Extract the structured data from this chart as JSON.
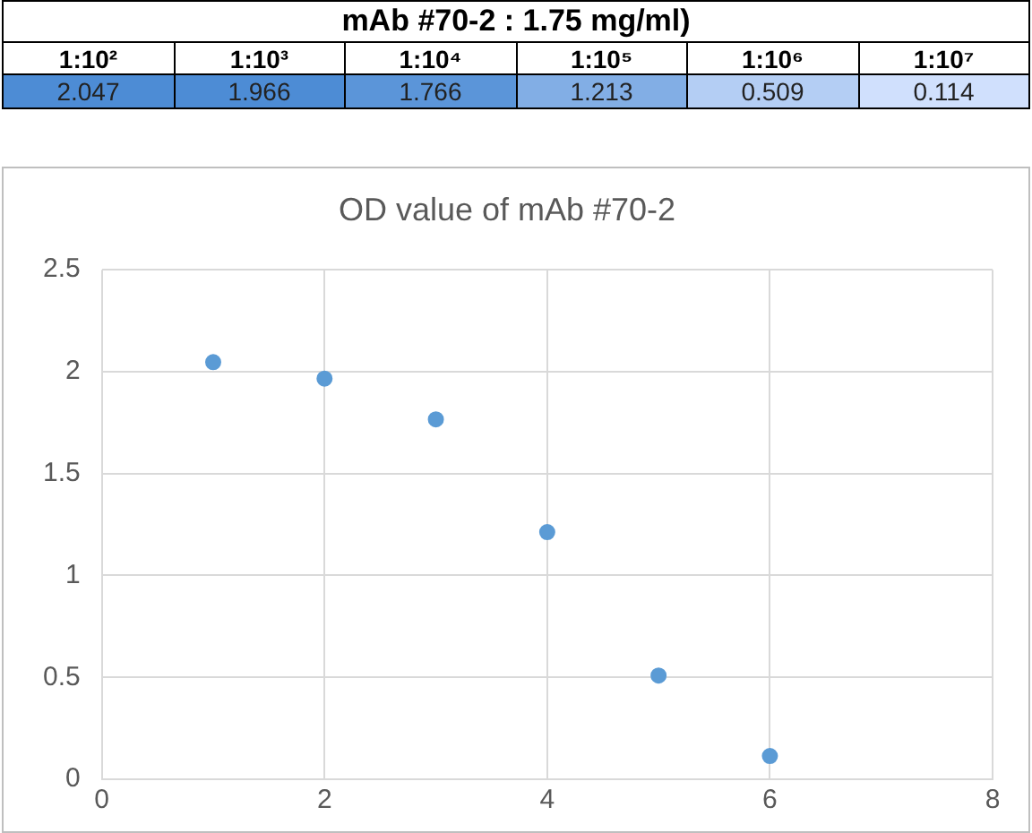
{
  "chart_data": {
    "type": "scatter",
    "title": "OD value of mAb #70-2",
    "annotations": [
      "mAb #70-2 : 1.75 mg/ml)",
      "1:10²",
      "1:10³",
      "1:10⁴",
      "1:10⁵",
      "1:10⁶",
      "1:10⁷",
      "2.047",
      "1.966",
      "1.766",
      "1.213",
      "0.509",
      "0.114"
    ],
    "x": [
      1,
      2,
      3,
      4,
      5,
      6
    ],
    "series": [
      {
        "color": "#5b9bd5",
        "values": [
          2.047,
          1.966,
          1.766,
          1.213,
          0.509,
          0.114
        ]
      }
    ],
    "xlim": [
      0,
      8
    ],
    "xticks": [
      0,
      2,
      4,
      6,
      8
    ],
    "ylim": [
      0,
      2.5
    ],
    "yticks": [
      0,
      0.5,
      1,
      1.5,
      2,
      2.5
    ],
    "grid": true,
    "legend": false,
    "marker": "circle"
  }
}
